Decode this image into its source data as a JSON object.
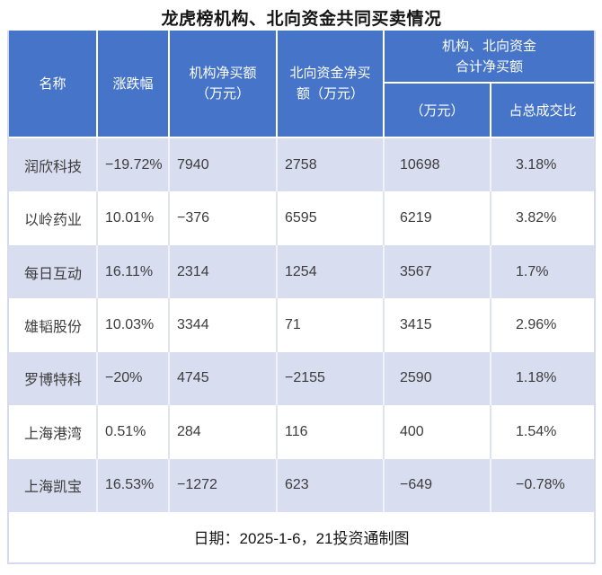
{
  "title": "龙虎榜机构、北向资金共同买卖情况",
  "footer": {
    "note": "日期：2025-1-6，21投资通制图"
  },
  "colors": {
    "header_bg": "#4574c8",
    "banded_row_bg": "#d9ddf0",
    "plain_row_bg": "#ffffff",
    "outer_border": "#d6daee",
    "header_text": "#ffffff",
    "body_text": "#3c3c3c"
  },
  "table": {
    "header": {
      "name": "名称",
      "change": "涨跌幅",
      "inst": "机构净买额\n（万元）",
      "north": "北向资金净买\n额（万元）",
      "combined": "机构、北向资金\n合计净买额",
      "combined_wan": "（万元）",
      "combined_ratio": "占总成交比"
    },
    "rows": [
      [
        "润欣科技",
        "−19.72%",
        "7940",
        "2758",
        "10698",
        "3.18%"
      ],
      [
        "以岭药业",
        "10.01%",
        "−376",
        "6595",
        "6219",
        "3.82%"
      ],
      [
        "每日互动",
        "16.11%",
        "2314",
        "1254",
        "3567",
        "1.7%"
      ],
      [
        "雄韬股份",
        "10.03%",
        "3344",
        "71",
        "3415",
        "2.96%"
      ],
      [
        "罗博特科",
        "−20%",
        "4745",
        "−2155",
        "2590",
        "1.18%"
      ],
      [
        "上海港湾",
        "0.51%",
        "284",
        "116",
        "400",
        "1.54%"
      ],
      [
        "上海凯宝",
        "16.53%",
        "−1272",
        "623",
        "−649",
        "−0.78%"
      ]
    ]
  },
  "chart_data": {
    "type": "table",
    "title": "龙虎榜机构、北向资金共同买卖情况",
    "columns": [
      "名称",
      "涨跌幅",
      "机构净买额（万元）",
      "北向资金净买额（万元）",
      "机构、北向资金合计净买额（万元）",
      "机构、北向资金合计净买额占总成交比"
    ],
    "rows": [
      {
        "name": "润欣科技",
        "change_pct": -19.72,
        "inst_net_buy_wan": 7940,
        "north_net_buy_wan": 2758,
        "combined_net_buy_wan": 10698,
        "pct_of_total_turnover": 3.18
      },
      {
        "name": "以岭药业",
        "change_pct": 10.01,
        "inst_net_buy_wan": -376,
        "north_net_buy_wan": 6595,
        "combined_net_buy_wan": 6219,
        "pct_of_total_turnover": 3.82
      },
      {
        "name": "每日互动",
        "change_pct": 16.11,
        "inst_net_buy_wan": 2314,
        "north_net_buy_wan": 1254,
        "combined_net_buy_wan": 3567,
        "pct_of_total_turnover": 1.7
      },
      {
        "name": "雄韬股份",
        "change_pct": 10.03,
        "inst_net_buy_wan": 3344,
        "north_net_buy_wan": 71,
        "combined_net_buy_wan": 3415,
        "pct_of_total_turnover": 2.96
      },
      {
        "name": "罗博特科",
        "change_pct": -20,
        "inst_net_buy_wan": 4745,
        "north_net_buy_wan": -2155,
        "combined_net_buy_wan": 2590,
        "pct_of_total_turnover": 1.18
      },
      {
        "name": "上海港湾",
        "change_pct": 0.51,
        "inst_net_buy_wan": 284,
        "north_net_buy_wan": 116,
        "combined_net_buy_wan": 400,
        "pct_of_total_turnover": 1.54
      },
      {
        "name": "上海凯宝",
        "change_pct": 16.53,
        "inst_net_buy_wan": -1272,
        "north_net_buy_wan": 623,
        "combined_net_buy_wan": -649,
        "pct_of_total_turnover": -0.78
      }
    ],
    "note": "日期：2025-1-6，21投资通制图"
  }
}
